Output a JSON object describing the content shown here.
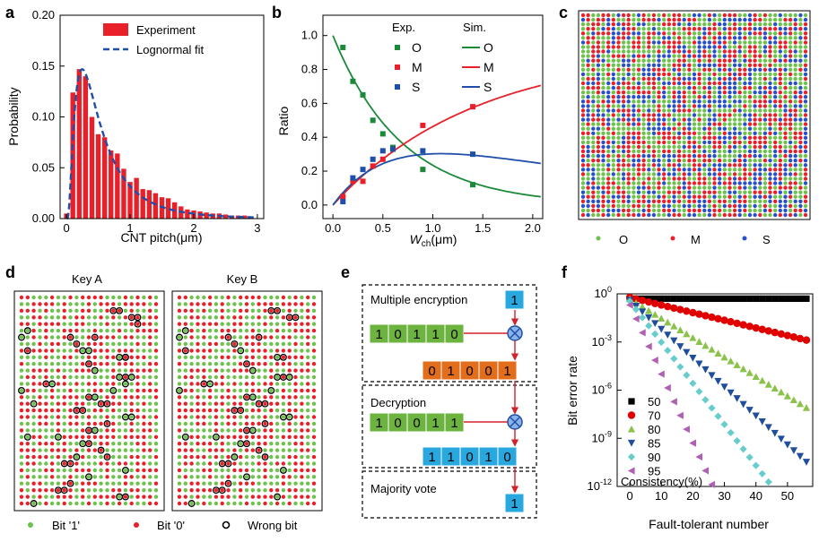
{
  "panels": {
    "a": "a",
    "b": "b",
    "c": "c",
    "d": "d",
    "e": "e",
    "f": "f"
  },
  "colors": {
    "red": "#e8202a",
    "green": "#1a8a3a",
    "blue": "#1f4fa8",
    "dash_blue": "#1f4fa8",
    "dot_green": "#6cc24a",
    "dot_red": "#e8202a",
    "dot_blue": "#2850c8",
    "box_green": "#6db33f",
    "box_orange": "#e26d1b",
    "box_blue": "#29a8e0",
    "f_black": "#000000",
    "f_red": "#e00000",
    "f_green": "#8bc34a",
    "f_navy": "#1f4e9c",
    "f_cyan": "#66cccc",
    "f_purple": "#b05fb5"
  },
  "chart_data": [
    {
      "panel": "a",
      "type": "bar",
      "xlabel": "CNT pitch(μm)",
      "ylabel": "Probability",
      "xlim": [
        -0.1,
        3.1
      ],
      "ylim": [
        0,
        0.2
      ],
      "xticks": [
        "0",
        "1",
        "2",
        "3"
      ],
      "yticks": [
        "0.00",
        "0.05",
        "0.10",
        "0.15",
        "0.20"
      ],
      "legend": [
        "Experiment",
        "Lognormal fit"
      ],
      "bin_width": 0.1,
      "x": [
        0.0,
        0.1,
        0.2,
        0.3,
        0.4,
        0.5,
        0.6,
        0.7,
        0.8,
        0.9,
        1.0,
        1.1,
        1.2,
        1.3,
        1.4,
        1.5,
        1.6,
        1.7,
        1.8,
        1.9,
        2.0,
        2.1,
        2.2,
        2.3,
        2.4,
        2.5,
        2.6,
        2.7,
        2.8,
        2.9
      ],
      "values": [
        0.005,
        0.124,
        0.147,
        0.14,
        0.1,
        0.083,
        0.08,
        0.067,
        0.064,
        0.049,
        0.036,
        0.04,
        0.029,
        0.028,
        0.025,
        0.021,
        0.02,
        0.016,
        0.012,
        0.009,
        0.008,
        0.007,
        0.006,
        0.005,
        0.005,
        0.004,
        0.003,
        0.003,
        0.003,
        0.002
      ],
      "fit": {
        "type": "lognormal",
        "mu": -0.76,
        "sigma": 0.8,
        "scale": 0.1
      }
    },
    {
      "panel": "b",
      "type": "scatter",
      "xlabel": "W",
      "xlabel_sub": "ch",
      "xlabel_unit": "(μm)",
      "ylabel": "Ratio",
      "xlim": [
        -0.1,
        2.1
      ],
      "ylim": [
        -0.08,
        1.12
      ],
      "xticks": [
        "0.0",
        "0.5",
        "1.0",
        "1.5",
        "2.0"
      ],
      "yticks": [
        "0.0",
        "0.2",
        "0.4",
        "0.6",
        "0.8",
        "1.0"
      ],
      "legend_exp_title": "Exp.",
      "legend_sim_title": "Sim.",
      "series": [
        {
          "name": "O",
          "x": [
            0.1,
            0.2,
            0.3,
            0.4,
            0.5,
            0.6,
            0.9,
            1.4
          ],
          "y": [
            0.93,
            0.73,
            0.65,
            0.5,
            0.42,
            0.34,
            0.21,
            0.12
          ]
        },
        {
          "name": "M",
          "x": [
            0.1,
            0.2,
            0.3,
            0.4,
            0.5,
            0.6,
            0.9,
            1.4
          ],
          "y": [
            0.05,
            0.14,
            0.14,
            0.23,
            0.27,
            0.33,
            0.47,
            0.58
          ]
        },
        {
          "name": "S",
          "x": [
            0.1,
            0.2,
            0.3,
            0.4,
            0.5,
            0.6,
            0.9,
            1.4
          ],
          "y": [
            0.02,
            0.16,
            0.21,
            0.27,
            0.32,
            0.33,
            0.32,
            0.3
          ]
        }
      ],
      "sim": [
        {
          "name": "O",
          "model": "exp",
          "a": 1.0,
          "k": 1.45
        },
        {
          "name": "M",
          "model": "sat",
          "a": 0.92,
          "k": 0.7
        },
        {
          "name": "S",
          "model": "diff"
        }
      ]
    },
    {
      "panel": "f",
      "type": "scatter",
      "xlabel": "Fault-tolerant number",
      "ylabel": "Bit error rate",
      "yscale": "log",
      "xlim": [
        -4,
        58
      ],
      "ylim_exp": [
        -12,
        0
      ],
      "xticks": [
        "0",
        "10",
        "20",
        "30",
        "40",
        "50"
      ],
      "ytick_exps": [
        "0",
        "-3",
        "-6",
        "-9",
        "-12"
      ],
      "legend_title": "Consistency(%)",
      "series": [
        {
          "name": "50",
          "p0": 0.5,
          "decades_per_unit": 0.0,
          "xmax": 57
        },
        {
          "name": "70",
          "p0": 0.6,
          "decades_per_unit": 0.0475,
          "xmax": 57
        },
        {
          "name": "80",
          "p0": 0.48,
          "decades_per_unit": 0.121,
          "xmax": 57
        },
        {
          "name": "85",
          "p0": 0.4,
          "decades_per_unit": 0.18,
          "xmax": 57
        },
        {
          "name": "90",
          "p0": 0.35,
          "decades_per_unit": 0.256,
          "xmax": 57
        },
        {
          "name": "95",
          "p0": 0.2,
          "decades_per_unit": 0.43,
          "xmax": 29
        }
      ]
    }
  ],
  "panel_c": {
    "legend": [
      "O",
      "M",
      "S"
    ],
    "rows": 45,
    "cols": 45
  },
  "panel_d": {
    "key_a": "Key A",
    "key_b": "Key B",
    "rows": 32,
    "cols": 23,
    "legend": [
      "Bit '1'",
      "Bit '0'",
      "Wrong bit"
    ],
    "wrong_bits_a": [
      [
        2,
        15
      ],
      [
        2,
        16
      ],
      [
        3,
        18
      ],
      [
        3,
        19
      ],
      [
        4,
        19
      ],
      [
        5,
        1
      ],
      [
        6,
        8
      ],
      [
        6,
        0
      ],
      [
        6,
        12
      ],
      [
        7,
        9
      ],
      [
        8,
        1
      ],
      [
        8,
        10
      ],
      [
        8,
        11
      ],
      [
        9,
        16
      ],
      [
        9,
        17
      ],
      [
        9,
        17
      ],
      [
        10,
        11
      ],
      [
        11,
        12
      ],
      [
        12,
        16
      ],
      [
        12,
        17
      ],
      [
        12,
        18
      ],
      [
        13,
        17
      ],
      [
        13,
        4
      ],
      [
        13,
        5
      ],
      [
        14,
        15
      ],
      [
        14,
        0
      ],
      [
        15,
        11
      ],
      [
        15,
        12
      ],
      [
        16,
        13
      ],
      [
        16,
        14
      ],
      [
        16,
        2
      ],
      [
        17,
        9
      ],
      [
        17,
        10
      ],
      [
        18,
        17
      ],
      [
        18,
        18
      ],
      [
        19,
        14
      ],
      [
        20,
        11
      ],
      [
        20,
        12
      ],
      [
        21,
        1
      ],
      [
        21,
        6
      ],
      [
        22,
        10
      ],
      [
        22,
        11
      ],
      [
        23,
        13
      ],
      [
        24,
        14
      ],
      [
        24,
        9
      ],
      [
        25,
        7
      ],
      [
        25,
        8
      ],
      [
        26,
        17
      ],
      [
        27,
        11
      ],
      [
        28,
        8
      ],
      [
        29,
        6
      ],
      [
        29,
        7
      ],
      [
        30,
        16
      ],
      [
        30,
        17
      ],
      [
        31,
        2
      ]
    ],
    "wrong_bits_b": [
      [
        2,
        15
      ],
      [
        2,
        16
      ],
      [
        3,
        18
      ],
      [
        3,
        19
      ],
      [
        5,
        1
      ],
      [
        6,
        0
      ],
      [
        6,
        8
      ],
      [
        6,
        13
      ],
      [
        7,
        9
      ],
      [
        8,
        1
      ],
      [
        8,
        10
      ],
      [
        9,
        16
      ],
      [
        9,
        17
      ],
      [
        10,
        11
      ],
      [
        11,
        12
      ],
      [
        12,
        16
      ],
      [
        12,
        17
      ],
      [
        12,
        18
      ],
      [
        13,
        4
      ],
      [
        13,
        5
      ],
      [
        14,
        0
      ],
      [
        14,
        15
      ],
      [
        15,
        11
      ],
      [
        15,
        12
      ],
      [
        16,
        13
      ],
      [
        16,
        14
      ],
      [
        17,
        9
      ],
      [
        17,
        10
      ],
      [
        18,
        17
      ],
      [
        18,
        18
      ],
      [
        19,
        14
      ],
      [
        20,
        11
      ],
      [
        20,
        12
      ],
      [
        21,
        1
      ],
      [
        21,
        6
      ],
      [
        22,
        10
      ],
      [
        22,
        11
      ],
      [
        23,
        13
      ],
      [
        24,
        9
      ],
      [
        24,
        14
      ],
      [
        25,
        7
      ],
      [
        25,
        8
      ],
      [
        26,
        17
      ],
      [
        27,
        11
      ],
      [
        28,
        8
      ],
      [
        29,
        6
      ],
      [
        29,
        7
      ],
      [
        30,
        16
      ],
      [
        31,
        2
      ]
    ]
  },
  "panel_e": {
    "multiple_encryption": "Multiple encryption",
    "key_bit": "1",
    "input_bits": [
      "1",
      "0",
      "1",
      "1",
      "0"
    ],
    "encrypted_bits": [
      "0",
      "1",
      "0",
      "0",
      "1"
    ],
    "decryption": "Decryption",
    "decrypt_key_bits": [
      "1",
      "0",
      "0",
      "1",
      "1"
    ],
    "decrypted_bits": [
      "1",
      "1",
      "0",
      "1",
      "0"
    ],
    "majority_vote": "Majority vote",
    "result_bit": "1"
  }
}
